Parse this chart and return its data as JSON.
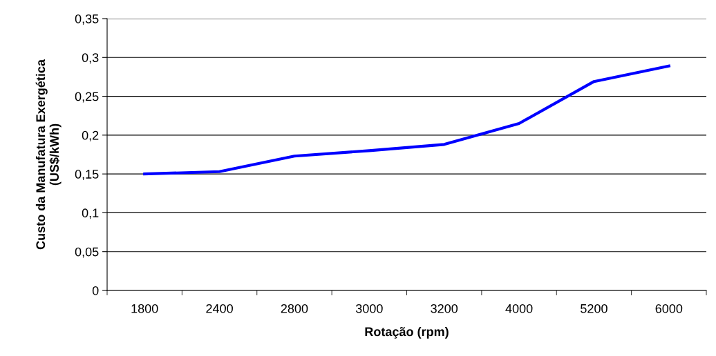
{
  "chart_data": {
    "type": "line",
    "xlabel": "Rotação (rpm)",
    "ylabel": "Custo da Manufatura Exergética\n(US$/kWh)",
    "categories": [
      "1800",
      "2400",
      "2800",
      "3000",
      "3200",
      "4000",
      "5200",
      "6000"
    ],
    "series": [
      {
        "color": "#0000ff",
        "values": [
          0.15,
          0.153,
          0.173,
          0.18,
          0.188,
          0.215,
          0.269,
          0.289
        ]
      }
    ],
    "ylim": [
      0,
      0.35
    ],
    "yticks": [
      {
        "value": 0,
        "label": "0"
      },
      {
        "value": 0.05,
        "label": "0,05"
      },
      {
        "value": 0.1,
        "label": "0,1"
      },
      {
        "value": 0.15,
        "label": "0,15"
      },
      {
        "value": 0.2,
        "label": "0,2"
      },
      {
        "value": 0.25,
        "label": "0,25"
      },
      {
        "value": 0.3,
        "label": "0,3"
      },
      {
        "value": 0.35,
        "label": "0,35"
      }
    ],
    "grid": "y",
    "marker": "none",
    "line_style": "solid"
  }
}
